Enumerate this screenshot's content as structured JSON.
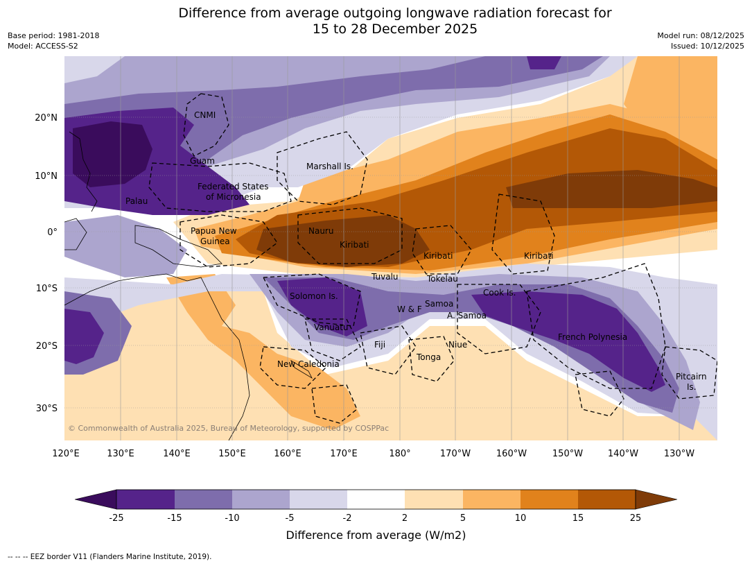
{
  "header": {
    "title_line1": "Difference from average outgoing longwave radiation forecast for",
    "title_line2": "15 to 28 December 2025",
    "base_period": "Base period: 1981-2018",
    "model": "Model: ACCESS-S2",
    "model_run": "Model run: 08/12/2025",
    "issued": "Issued: 10/12/2025"
  },
  "map": {
    "lon_labels": [
      "120°E",
      "130°E",
      "140°E",
      "150°E",
      "160°E",
      "170°E",
      "180°",
      "170°W",
      "160°W",
      "150°W",
      "140°W",
      "130°W"
    ],
    "lat_labels": [
      "20°N",
      "10°N",
      "0°",
      "10°S",
      "20°S",
      "30°S"
    ],
    "copyright": "© Commonwealth of Australia 2025, Bureau of Meteorology, supported by COSPPac",
    "places": {
      "cnmi": "CNMI",
      "guam": "Guam",
      "marshall": "Marshall Is.",
      "fsm_1": "Federated States",
      "fsm_2": "of Micronesia",
      "palau": "Palau",
      "png_1": "Papua New",
      "png_2": "Guinea",
      "nauru": "Nauru",
      "kiribati_w": "Kiribati",
      "kiribati_c": "Kiribati",
      "kiribati_e": "Kiribati",
      "tuvalu": "Tuvalu",
      "tokelau": "Tokelau",
      "solomon": "Solomon Is.",
      "vanuatu": "Vanuatu",
      "wf": "W & F",
      "samoa": "Samoa",
      "asamoa": "A. Samoa",
      "cook": "Cook Is.",
      "fiji": "Fiji",
      "niue": "Niue",
      "tonga": "Tonga",
      "newcal": "New Caledonia",
      "frpoly": "French Polynesia",
      "pitcairn_1": "Pitcairn",
      "pitcairn_2": "Is."
    }
  },
  "colorbar": {
    "ticks": [
      "-25",
      "-15",
      "-10",
      "-5",
      "-2",
      "2",
      "5",
      "10",
      "15",
      "25"
    ],
    "colors": [
      "#3a0c5c",
      "#55238a",
      "#7e6dac",
      "#aca5ce",
      "#d8d7ea",
      "#ffffff",
      "#fee0b3",
      "#fbb562",
      "#e1821c",
      "#b35806",
      "#7f3b08"
    ],
    "label": "Difference from average (W/m2)"
  },
  "footnote": "--  --  -- EEZ border V11 (Flanders Marine Institute, 2019)."
}
